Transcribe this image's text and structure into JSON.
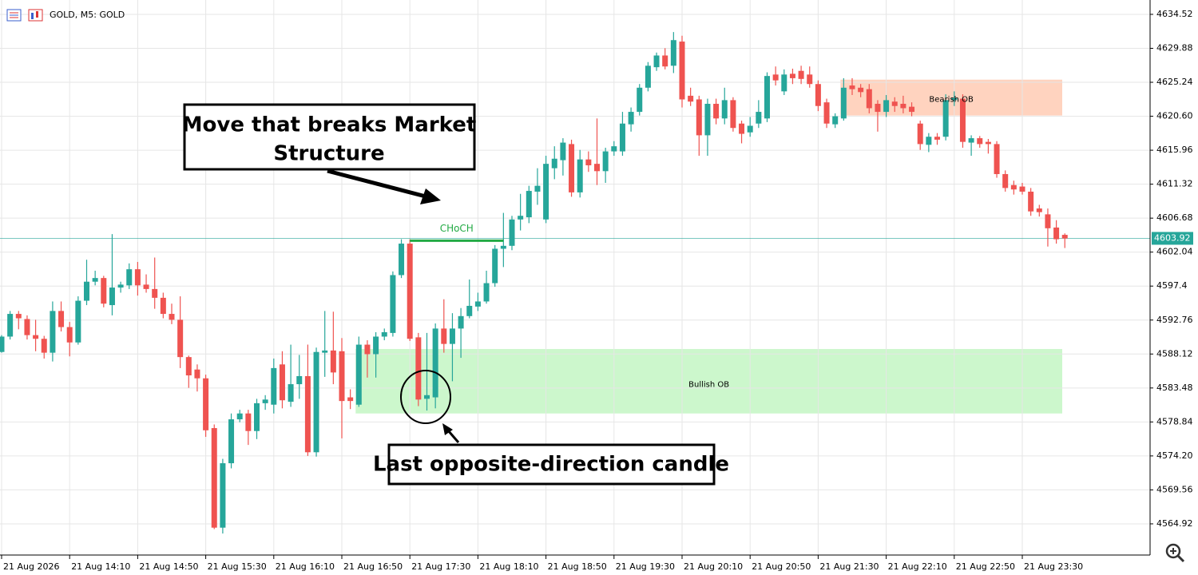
{
  "chart_data": {
    "type": "candlestick",
    "title": "GOLD, M5:  GOLD",
    "categories": [
      "21 Aug 2026",
      null,
      null,
      null,
      null,
      null,
      null,
      null,
      "21 Aug 14:10",
      null,
      null,
      null,
      null,
      null,
      null,
      null,
      "21 Aug 14:50",
      null,
      null,
      null,
      null,
      null,
      null,
      null,
      "21 Aug 15:30",
      null,
      null,
      null,
      null,
      null,
      null,
      null,
      "21 Aug 16:10",
      null,
      null,
      null,
      null,
      null,
      null,
      null,
      "21 Aug 16:50",
      null,
      null,
      null,
      null,
      null,
      null,
      null,
      "21 Aug 17:30",
      null,
      null,
      null,
      null,
      null,
      null,
      null,
      "21 Aug 18:10",
      null,
      null,
      null,
      null,
      null,
      null,
      null,
      "21 Aug 18:50",
      null,
      null,
      null,
      null,
      null,
      null,
      null,
      "21 Aug 19:30",
      null,
      null,
      null,
      null,
      null,
      null,
      null,
      "21 Aug 20:10",
      null,
      null,
      null,
      null,
      null,
      null,
      null,
      "21 Aug 20:50",
      null,
      null,
      null,
      null,
      null,
      null,
      null,
      "21 Aug 21:30",
      null,
      null,
      null,
      null,
      null,
      null,
      null,
      "21 Aug 22:10",
      null,
      null,
      null,
      null,
      null,
      null,
      null,
      "21 Aug 22:50",
      null,
      null,
      null,
      null,
      null,
      null,
      null,
      "21 Aug 23:30",
      null,
      null,
      null,
      null,
      null
    ],
    "open": [
      4588.4,
      4590.5,
      4593.6,
      4592.9,
      4590.7,
      4590.2,
      4588.3,
      4594.0,
      4591.8,
      4589.7,
      4595.4,
      4598.0,
      4598.5,
      4594.8,
      4597.2,
      4597.5,
      4599.7,
      4597.6,
      4597.0,
      4595.8,
      4593.6,
      4592.8,
      4587.7,
      4586.0,
      4584.8,
      4578.0,
      4564.4,
      4573.2,
      4579.2,
      4580.0,
      4577.6,
      4581.4,
      4581.2,
      4586.7,
      4581.6,
      4584.0,
      4585.1,
      4574.7,
      4588.3,
      4588.6,
      4588.5,
      4582.2,
      4581.2,
      4589.4,
      4588.1,
      4590.5,
      4591.0,
      4598.9,
      4603.2,
      4590.4,
      4582.0,
      4582.2,
      4591.6,
      4589.5,
      4591.6,
      4593.3,
      4594.6,
      4595.3,
      4597.8,
      4602.5,
      4602.9,
      4606.5,
      4606.8,
      4610.3,
      4606.5,
      4613.5,
      4614.6,
      4616.8,
      4610.2,
      4614.7,
      4614.1,
      4613.1,
      4615.8,
      4615.8,
      4619.5,
      4621.2,
      4624.5,
      4627.3,
      4628.9,
      4627.5,
      4630.8,
      4623.4,
      4622.9,
      4618.0,
      4622.3,
      4620.3,
      4622.8,
      4619.6,
      4618.4,
      4619.6,
      4620.3,
      4626.3,
      4624.0,
      4626.4,
      4626.8,
      4626.3,
      4625.0,
      4622.5,
      4619.5,
      4620.3,
      4624.8,
      4624.5,
      4624.3,
      4622.3,
      4621.2,
      4622.6,
      4622.3,
      4621.9,
      4619.6,
      4616.7,
      4617.8,
      4617.8,
      4622.8,
      4623.0,
      4617.0,
      4617.6,
      4617.1,
      4616.8,
      4612.7,
      4611.2,
      4611.0,
      4610.3,
      4608.0,
      4607.2,
      4605.4,
      4604.4
    ],
    "high": [
      4590.7,
      4594.0,
      4594.0,
      4593.4,
      4592.8,
      4590.6,
      4595.3,
      4595.3,
      4592.5,
      4596.0,
      4601.0,
      4599.5,
      4598.8,
      4604.5,
      4598.0,
      4600.5,
      4600.7,
      4599.0,
      4601.3,
      4596.5,
      4595.0,
      4596.0,
      4587.9,
      4586.7,
      4585.3,
      4578.5,
      4573.8,
      4580.0,
      4580.5,
      4580.5,
      4582.0,
      4582.5,
      4587.5,
      4588.5,
      4589.4,
      4588.0,
      4589.4,
      4589.0,
      4594.0,
      4593.9,
      4590.3,
      4583.3,
      4590.5,
      4590.0,
      4591.1,
      4591.6,
      4599.4,
      4603.8,
      4603.8,
      4591.0,
      4591.0,
      4592.3,
      4595.6,
      4593.7,
      4594.4,
      4598.3,
      4596.5,
      4599.5,
      4603.0,
      4607.4,
      4607.0,
      4610.0,
      4611.1,
      4613.5,
      4615.2,
      4616.5,
      4617.6,
      4617.4,
      4616.0,
      4615.8,
      4620.3,
      4616.3,
      4617.2,
      4621.2,
      4621.8,
      4625.0,
      4628.0,
      4629.3,
      4629.9,
      4632.1,
      4631.6,
      4624.5,
      4623.4,
      4623.0,
      4623.0,
      4624.5,
      4623.2,
      4620.0,
      4620.5,
      4622.8,
      4626.6,
      4627.4,
      4627.0,
      4627.1,
      4627.5,
      4627.4,
      4625.5,
      4623.0,
      4621.0,
      4625.8,
      4625.8,
      4625.0,
      4625.0,
      4622.8,
      4623.5,
      4623.2,
      4623.4,
      4622.5,
      4620.0,
      4618.3,
      4618.3,
      4623.6,
      4624.0,
      4623.6,
      4618.0,
      4617.9,
      4617.5,
      4617.2,
      4613.2,
      4611.8,
      4611.5,
      4610.8,
      4608.5,
      4608.0,
      4606.4,
      4604.6
    ],
    "low": [
      4588.3,
      4590.1,
      4591.5,
      4590.1,
      4588.5,
      4587.5,
      4587.1,
      4591.2,
      4587.8,
      4589.4,
      4594.8,
      4597.5,
      4594.5,
      4593.4,
      4596.5,
      4597.0,
      4596.1,
      4596.5,
      4594.3,
      4593.0,
      4592.2,
      4586.2,
      4583.5,
      4583.0,
      4576.8,
      4564.2,
      4563.6,
      4572.5,
      4578.8,
      4575.7,
      4576.5,
      4580.5,
      4580.0,
      4580.7,
      4580.9,
      4582.0,
      4574.2,
      4574.1,
      4585.0,
      4584.0,
      4576.6,
      4580.6,
      4580.9,
      4584.9,
      4584.9,
      4590.0,
      4590.5,
      4598.5,
      4589.9,
      4581.0,
      4580.4,
      4580.7,
      4588.3,
      4584.4,
      4587.6,
      4593.0,
      4594.0,
      4595.0,
      4597.3,
      4600.0,
      4602.3,
      4605.0,
      4606.0,
      4608.5,
      4606.0,
      4612.0,
      4612.5,
      4609.6,
      4609.5,
      4613.0,
      4611.2,
      4611.5,
      4615.2,
      4615.2,
      4618.5,
      4620.7,
      4624.0,
      4626.8,
      4627.0,
      4626.5,
      4621.8,
      4622.0,
      4615.2,
      4615.2,
      4619.5,
      4619.5,
      4618.5,
      4616.9,
      4617.8,
      4619.0,
      4619.8,
      4624.8,
      4623.5,
      4625.0,
      4625.0,
      4624.5,
      4621.3,
      4619.0,
      4619.0,
      4620.0,
      4623.5,
      4623.2,
      4621.0,
      4618.5,
      4620.5,
      4621.2,
      4621.0,
      4620.6,
      4616.0,
      4615.7,
      4616.7,
      4617.3,
      4622.0,
      4616.3,
      4615.2,
      4616.3,
      4615.5,
      4612.2,
      4610.3,
      4609.9,
      4609.9,
      4607.0,
      4606.9,
      4602.8,
      4603.2,
      4602.6
    ],
    "close": [
      4590.5,
      4593.6,
      4593.0,
      4590.7,
      4590.2,
      4588.3,
      4594.0,
      4591.8,
      4589.7,
      4595.4,
      4598.0,
      4598.5,
      4595.0,
      4597.2,
      4597.6,
      4599.7,
      4597.5,
      4597.0,
      4595.8,
      4593.6,
      4592.8,
      4587.7,
      4585.2,
      4584.8,
      4577.7,
      4564.4,
      4573.2,
      4579.2,
      4580.0,
      4577.6,
      4581.4,
      4581.9,
      4586.2,
      4581.8,
      4584.0,
      4585.1,
      4574.7,
      4588.4,
      4588.6,
      4585.6,
      4581.7,
      4581.7,
      4589.4,
      4588.1,
      4590.5,
      4591.1,
      4598.9,
      4603.2,
      4590.2,
      4581.9,
      4582.5,
      4591.6,
      4589.5,
      4591.6,
      4593.3,
      4594.7,
      4595.3,
      4597.8,
      4602.5,
      4602.9,
      4606.5,
      4607.0,
      4610.4,
      4611.1,
      4614.1,
      4614.8,
      4617.0,
      4610.2,
      4614.7,
      4613.9,
      4613.1,
      4615.8,
      4616.5,
      4619.6,
      4621.2,
      4624.5,
      4627.5,
      4628.9,
      4627.4,
      4631.0,
      4622.9,
      4622.6,
      4618.0,
      4622.3,
      4620.3,
      4622.8,
      4619.0,
      4618.2,
      4619.3,
      4621.2,
      4626.1,
      4625.5,
      4626.3,
      4625.8,
      4625.7,
      4625.0,
      4622.0,
      4619.6,
      4620.6,
      4624.5,
      4624.3,
      4623.9,
      4621.7,
      4621.2,
      4622.8,
      4622.0,
      4621.7,
      4621.2,
      4616.8,
      4617.8,
      4617.4,
      4622.8,
      4623.1,
      4617.1,
      4617.6,
      4616.8,
      4616.8,
      4612.7,
      4610.8,
      4610.6,
      4610.3,
      4607.6,
      4607.5,
      4605.3,
      4603.8,
      4603.9
    ],
    "up_color": "#26a69a",
    "down_color": "#ef5350",
    "ylim": [
      4560.66,
      4636.48
    ],
    "yticks": [
      4634.52,
      4629.88,
      4625.24,
      {
        "value": 4620.6,
        "label": "4620.60"
      },
      4615.96,
      4611.32,
      4606.68,
      4602.04,
      4597.4,
      {
        "value": 4592.76,
        "label": "4592.76"
      },
      4588.12,
      4583.48,
      4578.84,
      {
        "value": 4574.2,
        "label": "4574.20"
      },
      4569.56,
      4564.92
    ],
    "grid": true,
    "last_price": 4603.92,
    "zones": [
      {
        "label": "Bullish OB",
        "top": 4588.8,
        "bottom": 4580.0,
        "x_start": 42,
        "color": "#ccf7cc"
      },
      {
        "label": "Bearish OB",
        "top": 4625.6,
        "bottom": 4620.7,
        "x_start": 99,
        "color": "#ffd3bf"
      }
    ],
    "choch": {
      "label": "CHoCH",
      "price": 4603.6,
      "x_start": 48,
      "x_end": 59,
      "color": "#22aa44"
    },
    "callouts": [
      {
        "text": [
          "Move that breaks Market",
          "Structure"
        ]
      },
      {
        "text": [
          "Last opposite-direction candle"
        ]
      }
    ]
  }
}
